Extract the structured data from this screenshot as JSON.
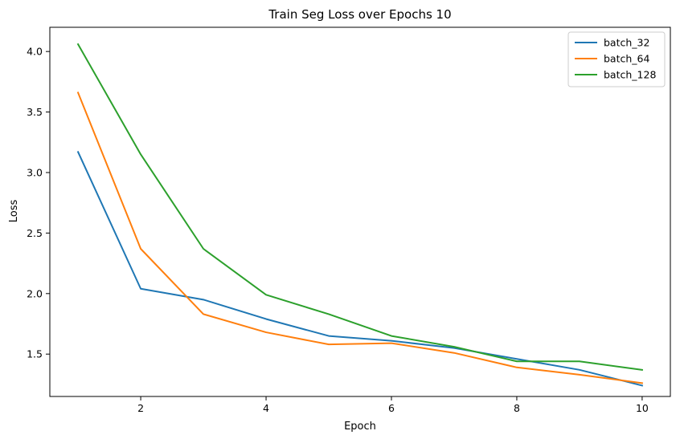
{
  "chart_data": {
    "type": "line",
    "title": "Train Seg Loss over Epochs 10",
    "xlabel": "Epoch",
    "ylabel": "Loss",
    "x": [
      1,
      2,
      3,
      4,
      5,
      6,
      7,
      8,
      9,
      10
    ],
    "xlim": [
      0.55,
      10.45
    ],
    "ylim": [
      1.15,
      4.2
    ],
    "xticks": [
      2,
      4,
      6,
      8,
      10
    ],
    "yticks": [
      1.5,
      2.0,
      2.5,
      3.0,
      3.5,
      4.0
    ],
    "xtick_labels": [
      "2",
      "4",
      "6",
      "8",
      "10"
    ],
    "ytick_labels": [
      "1.5",
      "2.0",
      "2.5",
      "3.0",
      "3.5",
      "4.0"
    ],
    "grid": false,
    "legend_position": "top-right",
    "series": [
      {
        "name": "batch_32",
        "color": "#1f77b4",
        "values": [
          3.17,
          2.04,
          1.95,
          1.79,
          1.65,
          1.61,
          1.55,
          1.46,
          1.37,
          1.24
        ]
      },
      {
        "name": "batch_64",
        "color": "#ff7f0e",
        "values": [
          3.66,
          2.37,
          1.83,
          1.68,
          1.58,
          1.59,
          1.51,
          1.39,
          1.33,
          1.26
        ]
      },
      {
        "name": "batch_128",
        "color": "#2ca02c",
        "values": [
          4.06,
          3.15,
          2.37,
          1.99,
          1.83,
          1.65,
          1.56,
          1.44,
          1.44,
          1.37
        ]
      }
    ]
  }
}
